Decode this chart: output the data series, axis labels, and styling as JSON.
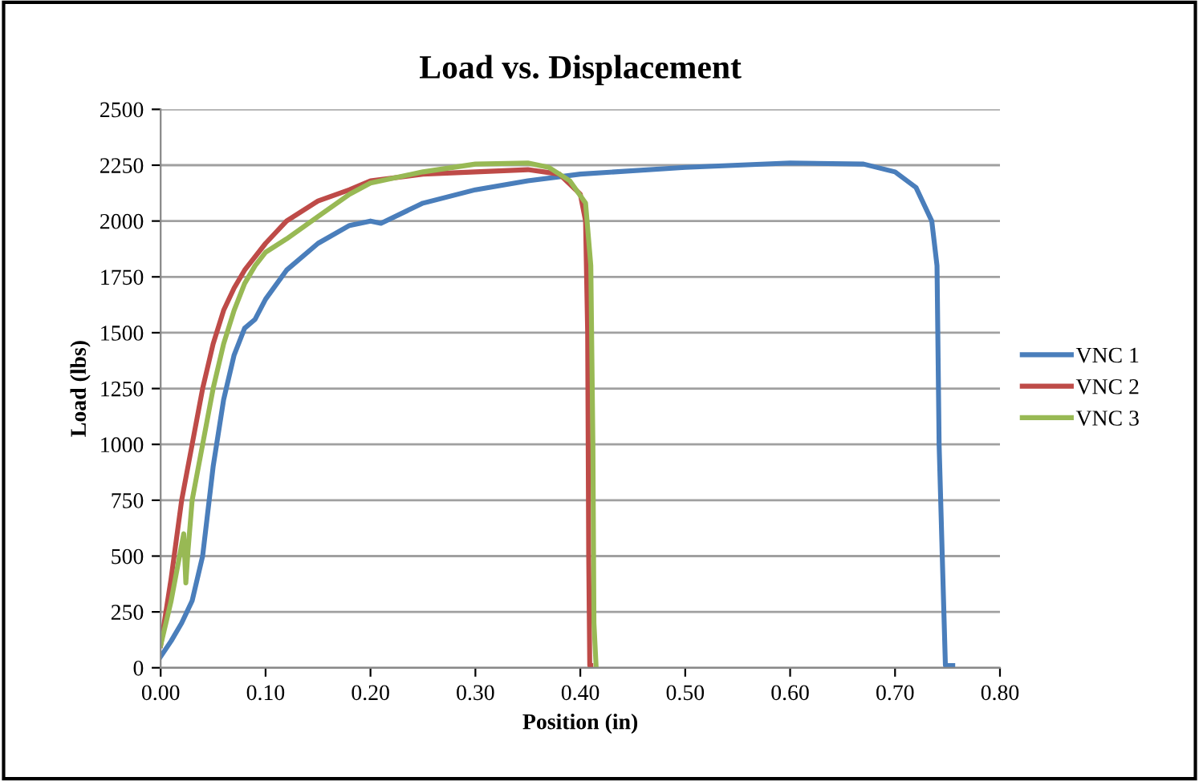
{
  "chart_data": {
    "type": "line",
    "title": "Load vs. Displacement",
    "xlabel": "Position (in)",
    "ylabel": "Load (lbs)",
    "xlim": [
      0,
      0.8
    ],
    "xticks": [
      {
        "value": 0,
        "label": "0.00"
      },
      {
        "value": 0.1,
        "label": "0.10"
      },
      {
        "value": 0.2,
        "label": "0.20"
      },
      {
        "value": 0.3,
        "label": "0.30"
      },
      {
        "value": 0.4,
        "label": "0.40"
      },
      {
        "value": 0.5,
        "label": "0.50"
      },
      {
        "value": 0.6,
        "label": "0.60"
      },
      {
        "value": 0.7,
        "label": "0.70"
      },
      {
        "value": 0.8,
        "label": "0.80"
      }
    ],
    "ylim": [
      0,
      2500
    ],
    "yticks": [
      0,
      250,
      500,
      750,
      1000,
      1250,
      1500,
      1750,
      2000,
      2250,
      2500
    ],
    "grid": "y",
    "legend": "right",
    "marker": "none",
    "line_style": "solid",
    "series": [
      {
        "name": "VNC 1",
        "color": "#4a7ebb",
        "x": [
          0,
          0.01,
          0.02,
          0.03,
          0.04,
          0.05,
          0.06,
          0.07,
          0.08,
          0.09,
          0.1,
          0.12,
          0.15,
          0.18,
          0.2,
          0.21,
          0.25,
          0.3,
          0.35,
          0.4,
          0.5,
          0.6,
          0.67,
          0.7,
          0.72,
          0.735,
          0.74,
          0.742,
          0.745,
          0.748,
          0.755
        ],
        "values": [
          50,
          120,
          200,
          300,
          500,
          900,
          1200,
          1400,
          1520,
          1560,
          1650,
          1780,
          1900,
          1980,
          2000,
          1990,
          2080,
          2140,
          2180,
          2210,
          2240,
          2260,
          2255,
          2220,
          2150,
          2000,
          1800,
          1000,
          500,
          10,
          10
        ]
      },
      {
        "name": "VNC 2",
        "color": "#be4b48",
        "x": [
          0,
          0.01,
          0.02,
          0.03,
          0.04,
          0.05,
          0.06,
          0.07,
          0.08,
          0.1,
          0.12,
          0.15,
          0.18,
          0.2,
          0.25,
          0.3,
          0.35,
          0.38,
          0.4,
          0.405,
          0.407,
          0.408,
          0.409,
          0.41
        ],
        "values": [
          100,
          400,
          750,
          1000,
          1250,
          1450,
          1600,
          1700,
          1780,
          1900,
          2000,
          2090,
          2140,
          2180,
          2210,
          2220,
          2230,
          2210,
          2120,
          2000,
          1500,
          500,
          10,
          10
        ]
      },
      {
        "name": "VNC 3",
        "color": "#98b954",
        "x": [
          0,
          0.01,
          0.02,
          0.022,
          0.024,
          0.026,
          0.03,
          0.04,
          0.05,
          0.06,
          0.07,
          0.08,
          0.09,
          0.1,
          0.12,
          0.15,
          0.18,
          0.2,
          0.25,
          0.3,
          0.35,
          0.37,
          0.39,
          0.405,
          0.41,
          0.412,
          0.413,
          0.415
        ],
        "values": [
          100,
          300,
          550,
          600,
          380,
          520,
          750,
          1000,
          1250,
          1450,
          1600,
          1720,
          1800,
          1860,
          1920,
          2020,
          2120,
          2170,
          2220,
          2255,
          2260,
          2240,
          2180,
          2080,
          1800,
          1000,
          200,
          10
        ]
      }
    ]
  }
}
